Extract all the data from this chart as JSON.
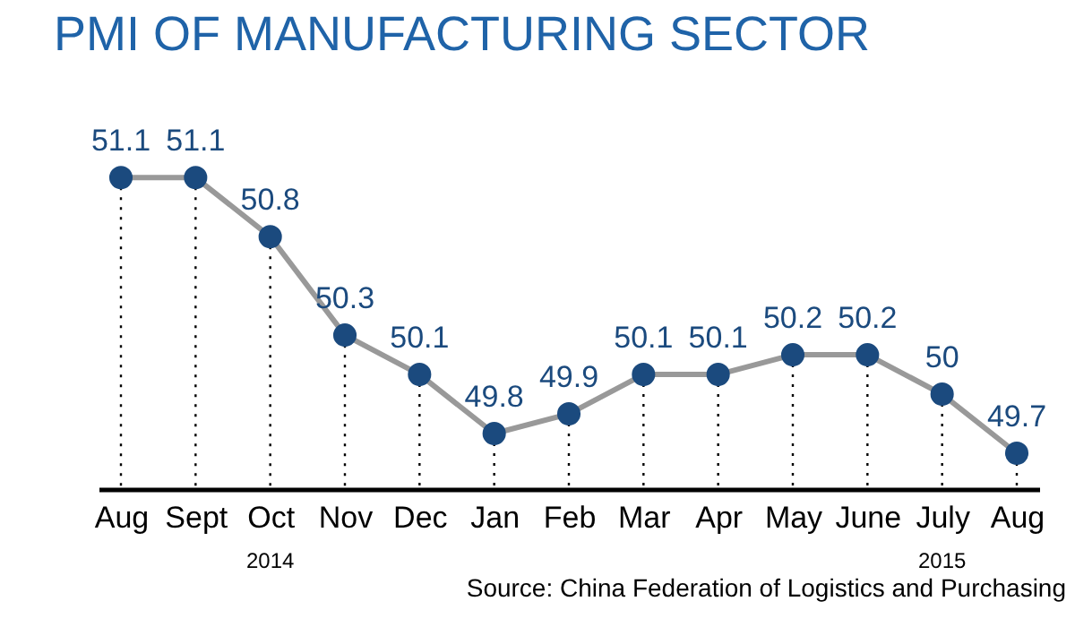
{
  "chart_data": {
    "type": "line",
    "title": "PMI OF MANUFACTURING SECTOR",
    "categories": [
      "Aug",
      "Sept",
      "Oct",
      "Nov",
      "Dec",
      "Jan",
      "Feb",
      "Mar",
      "Apr",
      "May",
      "June",
      "July",
      "Aug"
    ],
    "values": [
      51.1,
      51.1,
      50.8,
      50.3,
      50.1,
      49.8,
      49.9,
      50.1,
      50.1,
      50.2,
      50.2,
      50,
      49.7
    ],
    "color": "#1b4a7e",
    "marker": "circle",
    "data_labels": true,
    "tick_labels": "x",
    "grid": "x",
    "annotations": [
      "2014",
      "2015",
      "Source: China Federation of Logistics and Purchasing"
    ]
  }
}
